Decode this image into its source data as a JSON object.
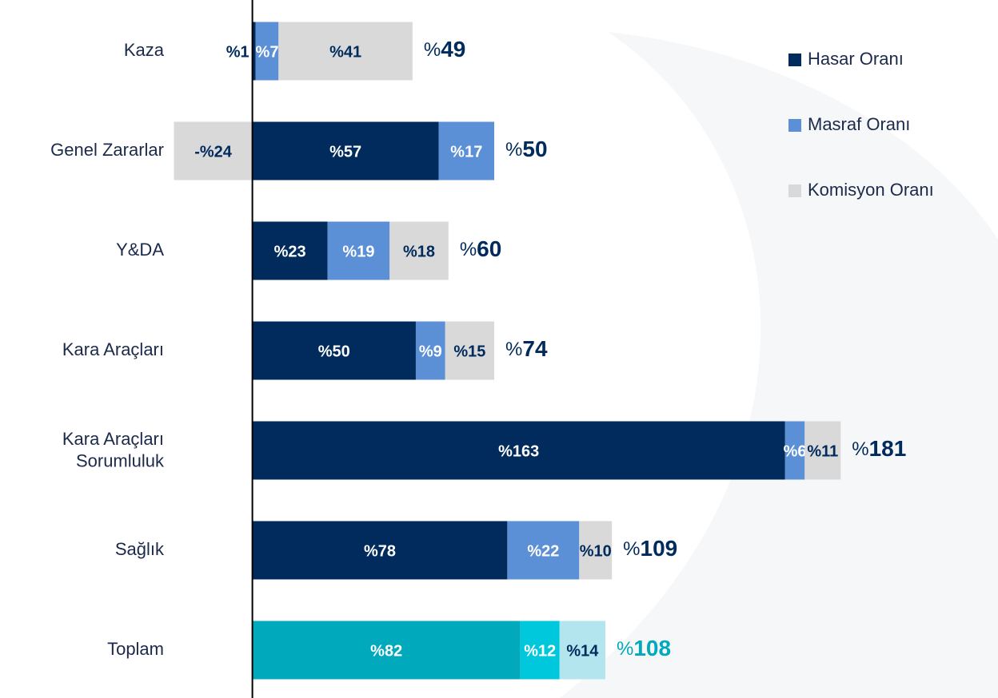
{
  "chart_data": {
    "type": "stacked_barh",
    "categories": [
      "Kaza",
      "Genel Zararlar",
      "Y&DA",
      "Kara Araçları",
      "Kara Araçları Sorumluluk",
      "Sağlık",
      "Toplam"
    ],
    "series": [
      {
        "name": "Hasar Oranı",
        "color": "#002b5c",
        "label_color": "#ffffff",
        "colors": [
          "#002b5c",
          "#002b5c",
          "#002b5c",
          "#002b5c",
          "#002b5c",
          "#002b5c",
          "#00a9bc"
        ],
        "values": [
          1,
          57,
          23,
          50,
          163,
          78,
          82
        ],
        "value_labels": [
          "%1",
          "%57",
          "%23",
          "%50",
          "%163",
          "%78",
          "%82"
        ]
      },
      {
        "name": "Masraf Oranı",
        "color": "#5b8fd6",
        "label_color": "#ffffff",
        "colors": [
          "#5b8fd6",
          "#5b8fd6",
          "#5b8fd6",
          "#5b8fd6",
          "#5b8fd6",
          "#5b8fd6",
          "#00c8dc"
        ],
        "values": [
          7,
          17,
          19,
          9,
          6,
          22,
          12
        ],
        "value_labels": [
          "%7",
          "%17",
          "%19",
          "%9",
          "%6",
          "%22",
          "%12"
        ]
      },
      {
        "name": "Komisyon Oranı",
        "color": "#d9d9d9",
        "label_color": "#002b5c",
        "colors": [
          "#d9d9d9",
          "#d9d9d9",
          "#d9d9d9",
          "#d9d9d9",
          "#d9d9d9",
          "#d9d9d9",
          "#b3e5ef"
        ],
        "values": [
          41,
          -24,
          18,
          15,
          11,
          10,
          14
        ],
        "value_labels": [
          "%41",
          "-%24",
          "%18",
          "%15",
          "%11",
          "%10",
          "%14"
        ]
      }
    ],
    "totals": [
      49,
      50,
      60,
      74,
      181,
      109,
      108
    ],
    "total_labels": [
      "%49",
      "%50",
      "%60",
      "%74",
      "%181",
      "%109",
      "%108"
    ],
    "total_colors": [
      "#002b5c",
      "#002b5c",
      "#002b5c",
      "#002b5c",
      "#002b5c",
      "#002b5c",
      "#00a9bc"
    ],
    "xlim": [
      -30,
      200
    ],
    "legend": "top-right",
    "grid": false
  }
}
